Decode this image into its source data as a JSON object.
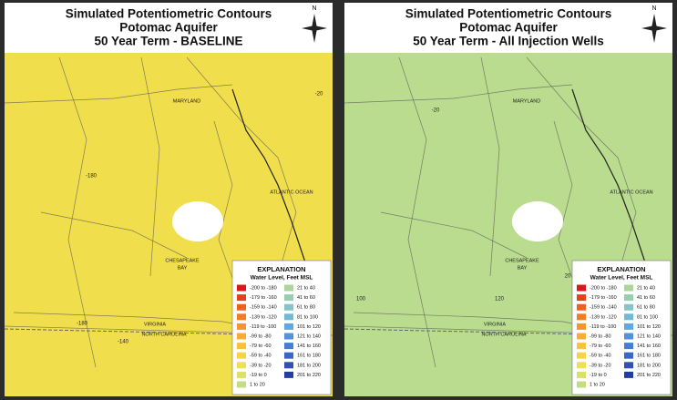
{
  "panels": [
    {
      "title_lines": [
        "Simulated Potentiometric Contours",
        "Potomac Aquifer",
        "50 Year Term - BASELINE"
      ],
      "compass": "N",
      "places": [
        "MARYLAND",
        "ATLANTIC OCEAN",
        "CHESAPEAKE",
        "BAY",
        "VIRGINIA",
        "NORTH CAROLINA"
      ],
      "contour_labels": [
        "-180",
        "-180",
        "-140",
        "-20"
      ]
    },
    {
      "title_lines": [
        "Simulated Potentiometric Contours",
        "Potomac Aquifer",
        "50 Year Term - All Injection Wells"
      ],
      "compass": "N",
      "places": [
        "MARYLAND",
        "ATLANTIC OCEAN",
        "CHESAPEAKE",
        "BAY",
        "VIRGINIA",
        "NORTH CAROLINA"
      ],
      "contour_labels": [
        "-20",
        "20",
        "120",
        "100"
      ]
    }
  ],
  "legend": {
    "title": "EXPLANATION",
    "subtitle": "Water Level, Feet MSL",
    "items": [
      {
        "label": "-200 to -180",
        "color": "#d7191c"
      },
      {
        "label": "-179 to -160",
        "color": "#e2401e"
      },
      {
        "label": "-159 to -140",
        "color": "#ea6121"
      },
      {
        "label": "-139 to -120",
        "color": "#f07c26"
      },
      {
        "label": "-119 to -100",
        "color": "#f4962c"
      },
      {
        "label": "-99 to -80",
        "color": "#f7ad35"
      },
      {
        "label": "-79 to -60",
        "color": "#f9c23e"
      },
      {
        "label": "-59 to -40",
        "color": "#f8d347"
      },
      {
        "label": "-39 to -20",
        "color": "#eee052"
      },
      {
        "label": "-19 to 0",
        "color": "#d9e16a"
      },
      {
        "label": "1 to 20",
        "color": "#c2dd82"
      },
      {
        "label": "21 to 40",
        "color": "#abd69a"
      },
      {
        "label": "41 to 60",
        "color": "#96cfb0"
      },
      {
        "label": "61 to 80",
        "color": "#83c6c5"
      },
      {
        "label": "81 to 100",
        "color": "#72b9d6"
      },
      {
        "label": "101 to 120",
        "color": "#61a8e0"
      },
      {
        "label": "121 to 140",
        "color": "#5393de"
      },
      {
        "label": "141 to 160",
        "color": "#477ed4"
      },
      {
        "label": "161 to 180",
        "color": "#3b68c6"
      },
      {
        "label": "181 to 200",
        "color": "#2f52b4"
      },
      {
        "label": "201 to 220",
        "color": "#233ea0"
      }
    ]
  }
}
